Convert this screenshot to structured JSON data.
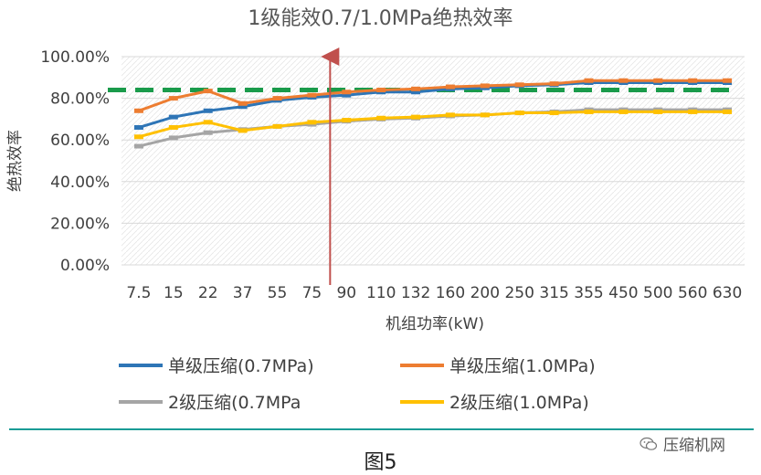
{
  "chart_data": {
    "type": "line",
    "title": "1级能效0.7/1.0MPa绝热效率",
    "xlabel": "机组功率(kW)",
    "ylabel": "绝热效率",
    "categories": [
      "7.5",
      "15",
      "22",
      "37",
      "55",
      "75",
      "90",
      "110",
      "132",
      "160",
      "200",
      "250",
      "315",
      "355",
      "450",
      "500",
      "560",
      "630"
    ],
    "y_ticks": [
      "0.00%",
      "20.00%",
      "40.00%",
      "60.00%",
      "80.00%",
      "100.00%"
    ],
    "ylim": [
      0,
      100
    ],
    "grid": true,
    "legend_position": "bottom",
    "series": [
      {
        "name": "单级压缩(0.7MPa)",
        "color": "#2e75b6",
        "values": [
          66,
          71,
          74,
          76,
          79,
          80.5,
          81.5,
          83,
          83,
          84.5,
          85,
          86,
          86.5,
          87.5,
          87.5,
          87.5,
          87.5,
          87.5
        ]
      },
      {
        "name": "单级压缩(1.0MPa)",
        "color": "#ed7d31",
        "values": [
          74,
          80,
          83.5,
          77.5,
          80,
          81.5,
          83,
          84,
          84.5,
          85.5,
          86,
          86.5,
          87,
          88.5,
          88.5,
          88.5,
          88.5,
          88.5
        ]
      },
      {
        "name": "2级压缩(0.7MPa",
        "color": "#a5a5a5",
        "values": [
          57,
          61,
          63.5,
          65,
          66.5,
          67.5,
          69,
          70,
          70.5,
          71.5,
          72,
          73,
          73.5,
          74.5,
          74.5,
          74.5,
          74.5,
          74.5
        ]
      },
      {
        "name": "2级压缩(1.0MPa)",
        "color": "#ffc000",
        "values": [
          61.5,
          66,
          68.5,
          64.5,
          66.5,
          68.5,
          69.5,
          70.5,
          71,
          72,
          72,
          73,
          73,
          73.5,
          73.5,
          73.5,
          73.5,
          73.5
        ]
      }
    ],
    "reference_line": {
      "value": 84,
      "color": "#1a9b4b",
      "style": "dashed"
    },
    "marker_line": {
      "category": "90",
      "color": "#c0504d",
      "style": "arrow"
    }
  },
  "legend": {
    "items": [
      {
        "label": "单级压缩(0.7MPa)",
        "color": "#2e75b6"
      },
      {
        "label": "单级压缩(1.0MPa)",
        "color": "#ed7d31"
      },
      {
        "label": "2级压缩(0.7MPa",
        "color": "#a5a5a5"
      },
      {
        "label": "2级压缩(1.0MPa)",
        "color": "#ffc000"
      }
    ]
  },
  "watermark": {
    "text": "压缩机网",
    "icon": "wechat-icon"
  },
  "caption": {
    "text": "图5"
  }
}
